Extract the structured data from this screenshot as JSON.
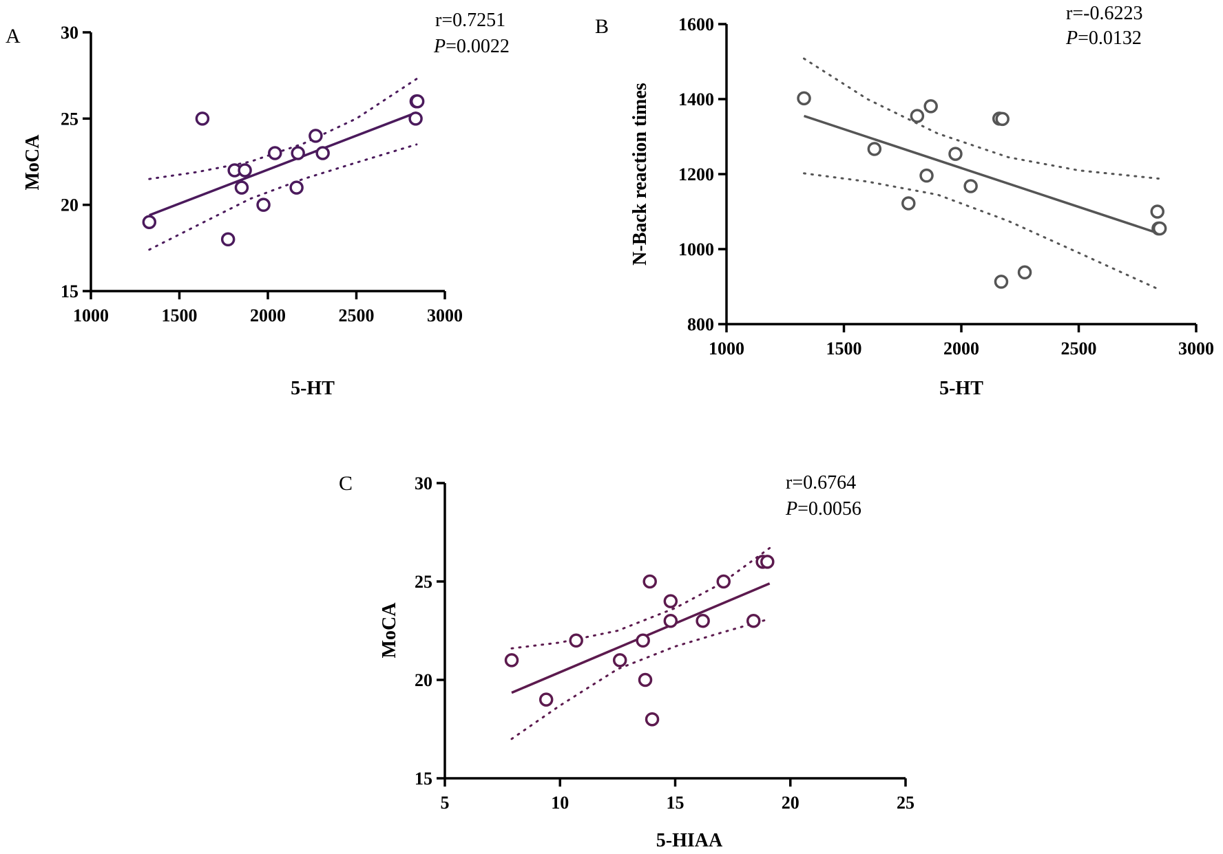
{
  "chart_data": [
    {
      "id": "A",
      "type": "scatter",
      "panel_label": "A",
      "xlabel": "5-HT",
      "ylabel": "MoCA",
      "xlim": [
        1000,
        3000
      ],
      "ylim": [
        15,
        30
      ],
      "xticks": [
        1000,
        1500,
        2000,
        2500,
        3000
      ],
      "yticks": [
        15,
        20,
        25,
        30
      ],
      "xtick_labels": [
        "1000",
        "1500",
        "2000",
        "2500",
        "3000"
      ],
      "ytick_labels": [
        "15",
        "20",
        "25",
        "30"
      ],
      "color": "#4b1a5c",
      "r_text": "r=0.7251",
      "p_letter": "P",
      "p_value": "=0.0022",
      "points": [
        {
          "x": 1330,
          "y": 19
        },
        {
          "x": 1630,
          "y": 25
        },
        {
          "x": 1775,
          "y": 18
        },
        {
          "x": 1812,
          "y": 22
        },
        {
          "x": 1852,
          "y": 21
        },
        {
          "x": 1870,
          "y": 22
        },
        {
          "x": 1975,
          "y": 20
        },
        {
          "x": 2040,
          "y": 23
        },
        {
          "x": 2162,
          "y": 21
        },
        {
          "x": 2170,
          "y": 23
        },
        {
          "x": 2270,
          "y": 24
        },
        {
          "x": 2310,
          "y": 23
        },
        {
          "x": 2835,
          "y": 25
        },
        {
          "x": 2840,
          "y": 26
        },
        {
          "x": 2845,
          "y": 26
        }
      ],
      "fit_line": [
        {
          "x": 1330,
          "y": 19.4
        },
        {
          "x": 2840,
          "y": 25.35
        }
      ],
      "ci_upper": [
        {
          "x": 1330,
          "y": 21.5
        },
        {
          "x": 1600,
          "y": 21.9
        },
        {
          "x": 1900,
          "y": 22.5
        },
        {
          "x": 2200,
          "y": 23.55
        },
        {
          "x": 2500,
          "y": 25.0
        },
        {
          "x": 2840,
          "y": 27.3
        }
      ],
      "ci_lower": [
        {
          "x": 1330,
          "y": 17.4
        },
        {
          "x": 1600,
          "y": 18.8
        },
        {
          "x": 1900,
          "y": 20.35
        },
        {
          "x": 2200,
          "y": 21.5
        },
        {
          "x": 2500,
          "y": 22.45
        },
        {
          "x": 2840,
          "y": 23.5
        }
      ]
    },
    {
      "id": "B",
      "type": "scatter",
      "panel_label": "B",
      "xlabel": "5-HT",
      "ylabel": "N-Back reaction times",
      "xlim": [
        1000,
        3000
      ],
      "ylim": [
        800,
        1600
      ],
      "xticks": [
        1000,
        1500,
        2000,
        2500,
        3000
      ],
      "yticks": [
        800,
        1000,
        1200,
        1400,
        1600
      ],
      "xtick_labels": [
        "1000",
        "1500",
        "2000",
        "2500",
        "3000"
      ],
      "ytick_labels": [
        "800",
        "1000",
        "1200",
        "1400",
        "1600"
      ],
      "color": "#555555",
      "r_text": "r=-0.6223",
      "p_letter": "P",
      "p_value": "=0.0132",
      "points": [
        {
          "x": 1330,
          "y": 1402
        },
        {
          "x": 1630,
          "y": 1267
        },
        {
          "x": 1775,
          "y": 1122
        },
        {
          "x": 1812,
          "y": 1355
        },
        {
          "x": 1852,
          "y": 1196
        },
        {
          "x": 1870,
          "y": 1381
        },
        {
          "x": 1975,
          "y": 1254
        },
        {
          "x": 2040,
          "y": 1168
        },
        {
          "x": 2162,
          "y": 1348
        },
        {
          "x": 2170,
          "y": 913
        },
        {
          "x": 2175,
          "y": 1347
        },
        {
          "x": 2270,
          "y": 938
        },
        {
          "x": 2835,
          "y": 1100
        },
        {
          "x": 2840,
          "y": 1055
        },
        {
          "x": 2845,
          "y": 1055
        }
      ],
      "fit_line": [
        {
          "x": 1330,
          "y": 1355
        },
        {
          "x": 2840,
          "y": 1042
        }
      ],
      "ci_upper": [
        {
          "x": 1330,
          "y": 1508
        },
        {
          "x": 1600,
          "y": 1400
        },
        {
          "x": 1900,
          "y": 1308
        },
        {
          "x": 2200,
          "y": 1245
        },
        {
          "x": 2500,
          "y": 1210
        },
        {
          "x": 2840,
          "y": 1188
        }
      ],
      "ci_lower": [
        {
          "x": 1330,
          "y": 1202
        },
        {
          "x": 1600,
          "y": 1180
        },
        {
          "x": 1900,
          "y": 1145
        },
        {
          "x": 2200,
          "y": 1075
        },
        {
          "x": 2500,
          "y": 990
        },
        {
          "x": 2840,
          "y": 893
        }
      ]
    },
    {
      "id": "C",
      "type": "scatter",
      "panel_label": "C",
      "xlabel": "5-HIAA",
      "ylabel": "MoCA",
      "xlim": [
        5,
        25
      ],
      "ylim": [
        15,
        30
      ],
      "xticks": [
        5,
        10,
        15,
        20,
        25
      ],
      "yticks": [
        15,
        20,
        25,
        30
      ],
      "xtick_labels": [
        "5",
        "10",
        "15",
        "20",
        "25"
      ],
      "ytick_labels": [
        "15",
        "20",
        "25",
        "30"
      ],
      "color": "#5c1a4e",
      "r_text": "r=0.6764",
      "p_letter": "P",
      "p_value": "=0.0056",
      "points": [
        {
          "x": 7.9,
          "y": 21
        },
        {
          "x": 9.4,
          "y": 19
        },
        {
          "x": 10.7,
          "y": 22
        },
        {
          "x": 12.6,
          "y": 21
        },
        {
          "x": 13.6,
          "y": 22
        },
        {
          "x": 13.7,
          "y": 20
        },
        {
          "x": 13.9,
          "y": 25
        },
        {
          "x": 14.0,
          "y": 18
        },
        {
          "x": 14.8,
          "y": 23
        },
        {
          "x": 14.8,
          "y": 24
        },
        {
          "x": 16.2,
          "y": 23
        },
        {
          "x": 17.1,
          "y": 25
        },
        {
          "x": 18.4,
          "y": 23
        },
        {
          "x": 18.8,
          "y": 26
        },
        {
          "x": 19.0,
          "y": 26
        }
      ],
      "fit_line": [
        {
          "x": 7.9,
          "y": 19.35
        },
        {
          "x": 19.1,
          "y": 24.9
        }
      ],
      "ci_upper": [
        {
          "x": 7.9,
          "y": 21.6
        },
        {
          "x": 10,
          "y": 21.9
        },
        {
          "x": 12.5,
          "y": 22.5
        },
        {
          "x": 15,
          "y": 23.65
        },
        {
          "x": 17,
          "y": 24.9
        },
        {
          "x": 19.1,
          "y": 26.7
        }
      ],
      "ci_lower": [
        {
          "x": 7.9,
          "y": 17.0
        },
        {
          "x": 10,
          "y": 18.7
        },
        {
          "x": 12.5,
          "y": 20.55
        },
        {
          "x": 15,
          "y": 21.7
        },
        {
          "x": 17,
          "y": 22.4
        },
        {
          "x": 19.1,
          "y": 23.1
        }
      ]
    }
  ]
}
